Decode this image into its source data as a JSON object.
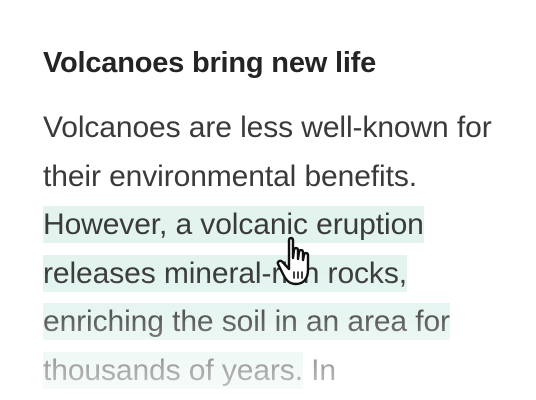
{
  "article": {
    "heading": "Volcanoes bring new life",
    "paragraph": {
      "before_highlight": "Volcanoes are less well-known for their environmental benefits. ",
      "highlighted": "However, a volcanic eruption releases mineral-rich rocks, enriching the soil in an area for thousands of years.",
      "after_highlight": " In"
    }
  },
  "colors": {
    "heading_text": "#242424",
    "body_text": "#3a3a3a",
    "highlight_background": "#e3f4ef"
  },
  "cursor": {
    "icon": "hand-pointer-icon"
  }
}
